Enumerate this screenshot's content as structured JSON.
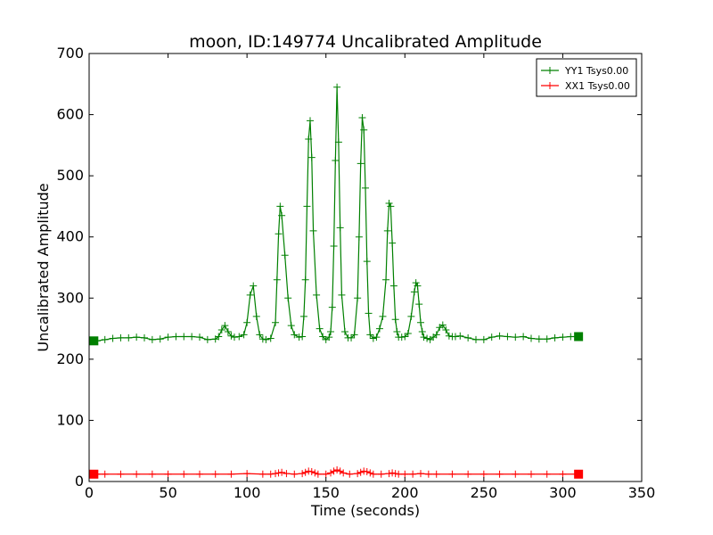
{
  "chart_data": {
    "type": "line",
    "title": "moon, ID:149774 Uncalibrated Amplitude",
    "xlabel": "Time (seconds)",
    "ylabel": "Uncalibrated Amplitude",
    "xlim": [
      0,
      350
    ],
    "ylim": [
      0,
      700
    ],
    "xticks": [
      "0",
      "50",
      "100",
      "150",
      "200",
      "250",
      "300",
      "350"
    ],
    "yticks": [
      "0",
      "100",
      "200",
      "300",
      "400",
      "500",
      "600",
      "700"
    ],
    "grid": false,
    "legend_position": "top-right",
    "series": [
      {
        "name": "YY1 Tsys0.00",
        "color": "#008000",
        "marker": "plus",
        "x": [
          3,
          5,
          10,
          15,
          20,
          25,
          30,
          35,
          40,
          45,
          50,
          55,
          60,
          65,
          70,
          75,
          80,
          82,
          84,
          86,
          88,
          90,
          92,
          95,
          98,
          100,
          102,
          104,
          106,
          108,
          110,
          112,
          115,
          118,
          119,
          120,
          121,
          122,
          124,
          126,
          128,
          130,
          133,
          135,
          136,
          137,
          138,
          139,
          140,
          141,
          142,
          144,
          146,
          148,
          150,
          152,
          153,
          154,
          155,
          156,
          157,
          158,
          159,
          160,
          162,
          164,
          166,
          168,
          170,
          171,
          172,
          173,
          174,
          175,
          176,
          177,
          178,
          180,
          182,
          184,
          186,
          188,
          189,
          190,
          191,
          192,
          193,
          194,
          195,
          196,
          198,
          200,
          202,
          204,
          206,
          207,
          208,
          209,
          210,
          211,
          212,
          214,
          216,
          218,
          220,
          222,
          224,
          226,
          228,
          230,
          232,
          235,
          240,
          245,
          250,
          255,
          260,
          265,
          270,
          275,
          280,
          285,
          290,
          295,
          300,
          305,
          310
        ],
        "y": [
          230,
          230,
          232,
          234,
          235,
          235,
          236,
          235,
          232,
          233,
          236,
          237,
          237,
          237,
          236,
          232,
          233,
          237,
          248,
          255,
          245,
          238,
          236,
          237,
          240,
          260,
          305,
          320,
          270,
          240,
          233,
          232,
          234,
          260,
          330,
          405,
          450,
          435,
          370,
          300,
          255,
          240,
          236,
          237,
          270,
          330,
          450,
          560,
          590,
          530,
          410,
          305,
          250,
          237,
          232,
          236,
          245,
          285,
          385,
          525,
          645,
          555,
          415,
          305,
          245,
          235,
          235,
          240,
          300,
          400,
          520,
          595,
          575,
          480,
          360,
          275,
          240,
          234,
          236,
          250,
          270,
          330,
          410,
          455,
          450,
          390,
          320,
          265,
          245,
          236,
          236,
          237,
          242,
          270,
          310,
          325,
          320,
          290,
          260,
          245,
          236,
          234,
          232,
          236,
          240,
          252,
          256,
          248,
          238,
          237,
          237,
          238,
          235,
          232,
          232,
          236,
          238,
          237,
          236,
          237,
          234,
          233,
          233,
          235,
          236,
          237,
          237
        ]
      },
      {
        "name": "XX1 Tsys0.00",
        "color": "#ff0000",
        "marker": "plus",
        "x": [
          3,
          5,
          10,
          20,
          30,
          40,
          50,
          60,
          70,
          80,
          90,
          100,
          110,
          115,
          118,
          120,
          122,
          125,
          130,
          135,
          137,
          139,
          141,
          143,
          145,
          150,
          153,
          155,
          157,
          159,
          161,
          165,
          170,
          172,
          174,
          176,
          178,
          180,
          185,
          190,
          192,
          194,
          196,
          200,
          205,
          210,
          215,
          220,
          230,
          240,
          250,
          260,
          270,
          280,
          290,
          300,
          310
        ],
        "y": [
          12,
          12,
          12,
          12,
          12,
          12,
          12,
          12,
          12,
          12,
          12,
          13,
          12,
          12,
          13,
          14,
          15,
          13,
          12,
          13,
          15,
          17,
          16,
          14,
          12,
          12,
          14,
          17,
          19,
          17,
          14,
          12,
          13,
          15,
          17,
          16,
          14,
          12,
          12,
          13,
          14,
          13,
          12,
          12,
          12,
          13,
          12,
          12,
          12,
          12,
          12,
          12,
          12,
          12,
          12,
          12,
          12
        ]
      }
    ]
  }
}
